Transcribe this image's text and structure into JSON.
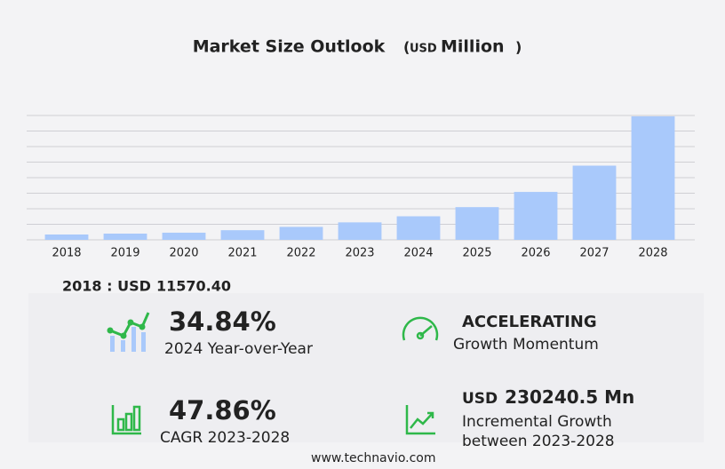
{
  "chart_data": {
    "type": "bar",
    "title": "Market Size Outlook",
    "unit_open": "(",
    "unit_currency": "USD",
    "unit_name": "Million",
    "unit_close": ")",
    "categories": [
      "2018",
      "2019",
      "2020",
      "2021",
      "2022",
      "2023",
      "2024",
      "2025",
      "2026",
      "2027",
      "2028"
    ],
    "values": [
      11570.4,
      13500,
      15500,
      20900,
      28100,
      37900,
      51100,
      71000,
      104000,
      161000,
      268140
    ],
    "color": "#a9c9fb",
    "ylim": [
      0,
      270000
    ],
    "yticks": [
      0,
      33750,
      67500,
      101250,
      135000,
      168750,
      202500,
      236250,
      270000
    ],
    "grid": true
  },
  "base": {
    "label": "2018 : USD",
    "value": "11570.40"
  },
  "stats": [
    {
      "value": "34.84%",
      "label": "2024 Year-over-Year"
    },
    {
      "value": "ACCELERATING",
      "label": "Growth Momentum"
    },
    {
      "value": "47.86%",
      "label": "CAGR 2023-2028"
    },
    {
      "currency": "USD",
      "value": "230240.5 Mn",
      "label": "Incremental Growth",
      "label2": "between 2023-2028"
    }
  ],
  "footer": "www.technavio.com"
}
